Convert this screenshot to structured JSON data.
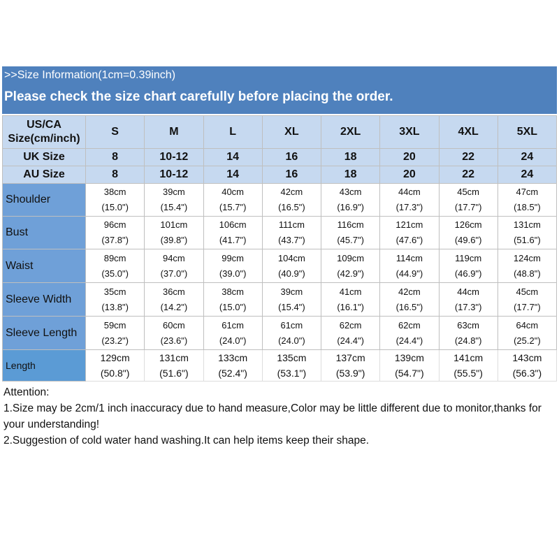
{
  "header": {
    "title": ">>Size Information(1cm=0.39inch)",
    "subtitle": "Please check the size chart carefully before placing the order."
  },
  "table": {
    "size_rows": [
      {
        "label": "US/CA Size(cm/inch)",
        "values": [
          "S",
          "M",
          "L",
          "XL",
          "2XL",
          "3XL",
          "4XL",
          "5XL"
        ]
      },
      {
        "label": "UK Size",
        "values": [
          "8",
          "10-12",
          "14",
          "16",
          "18",
          "20",
          "22",
          "24"
        ]
      },
      {
        "label": "AU Size",
        "values": [
          "8",
          "10-12",
          "14",
          "16",
          "18",
          "20",
          "22",
          "24"
        ]
      }
    ],
    "measure_rows": [
      {
        "label": "Shoulder",
        "cm": [
          "38cm",
          "39cm",
          "40cm",
          "42cm",
          "43cm",
          "44cm",
          "45cm",
          "47cm"
        ],
        "inch": [
          "(15.0\")",
          "(15.4\")",
          "(15.7\")",
          "(16.5\")",
          "(16.9\")",
          "(17.3\")",
          "(17.7\")",
          "(18.5\")"
        ]
      },
      {
        "label": "Bust",
        "cm": [
          "96cm",
          "101cm",
          "106cm",
          "111cm",
          "116cm",
          "121cm",
          "126cm",
          "131cm"
        ],
        "inch": [
          "(37.8\")",
          "(39.8\")",
          "(41.7\")",
          "(43.7\")",
          "(45.7\")",
          "(47.6\")",
          "(49.6\")",
          "(51.6\")"
        ]
      },
      {
        "label": "Waist",
        "cm": [
          "89cm",
          "94cm",
          "99cm",
          "104cm",
          "109cm",
          "114cm",
          "119cm",
          "124cm"
        ],
        "inch": [
          "(35.0\")",
          "(37.0\")",
          "(39.0\")",
          "(40.9\")",
          "(42.9\")",
          "(44.9\")",
          "(46.9\")",
          "(48.8\")"
        ]
      },
      {
        "label": "Sleeve Width",
        "cm": [
          "35cm",
          "36cm",
          "38cm",
          "39cm",
          "41cm",
          "42cm",
          "44cm",
          "45cm"
        ],
        "inch": [
          "(13.8\")",
          "(14.2\")",
          "(15.0\")",
          "(15.4\")",
          "(16.1\")",
          "(16.5\")",
          "(17.3\")",
          "(17.7\")"
        ]
      },
      {
        "label": "Sleeve Length",
        "cm": [
          "59cm",
          "60cm",
          "61cm",
          "61cm",
          "62cm",
          "62cm",
          "63cm",
          "64cm"
        ],
        "inch": [
          "(23.2\")",
          "(23.6\")",
          "(24.0\")",
          "(24.0\")",
          "(24.4\")",
          "(24.4\")",
          "(24.8\")",
          "(25.2\")"
        ]
      },
      {
        "label": "Length",
        "cm": [
          "129cm",
          "131cm",
          "133cm",
          "135cm",
          "137cm",
          "139cm",
          "141cm",
          "143cm"
        ],
        "inch": [
          "(50.8\")",
          "(51.6\")",
          "(52.4\")",
          "(53.1\")",
          "(53.9\")",
          "(54.7\")",
          "(55.5\")",
          "(56.3\")"
        ]
      }
    ]
  },
  "notes": {
    "heading": "Attention:",
    "items": [
      "1.Size may be 2cm/1 inch inaccuracy due to hand measure,Color may be little different due to monitor,thanks for your understanding!",
      "2.Suggestion of cold water hand washing.It can help items keep their shape."
    ]
  }
}
